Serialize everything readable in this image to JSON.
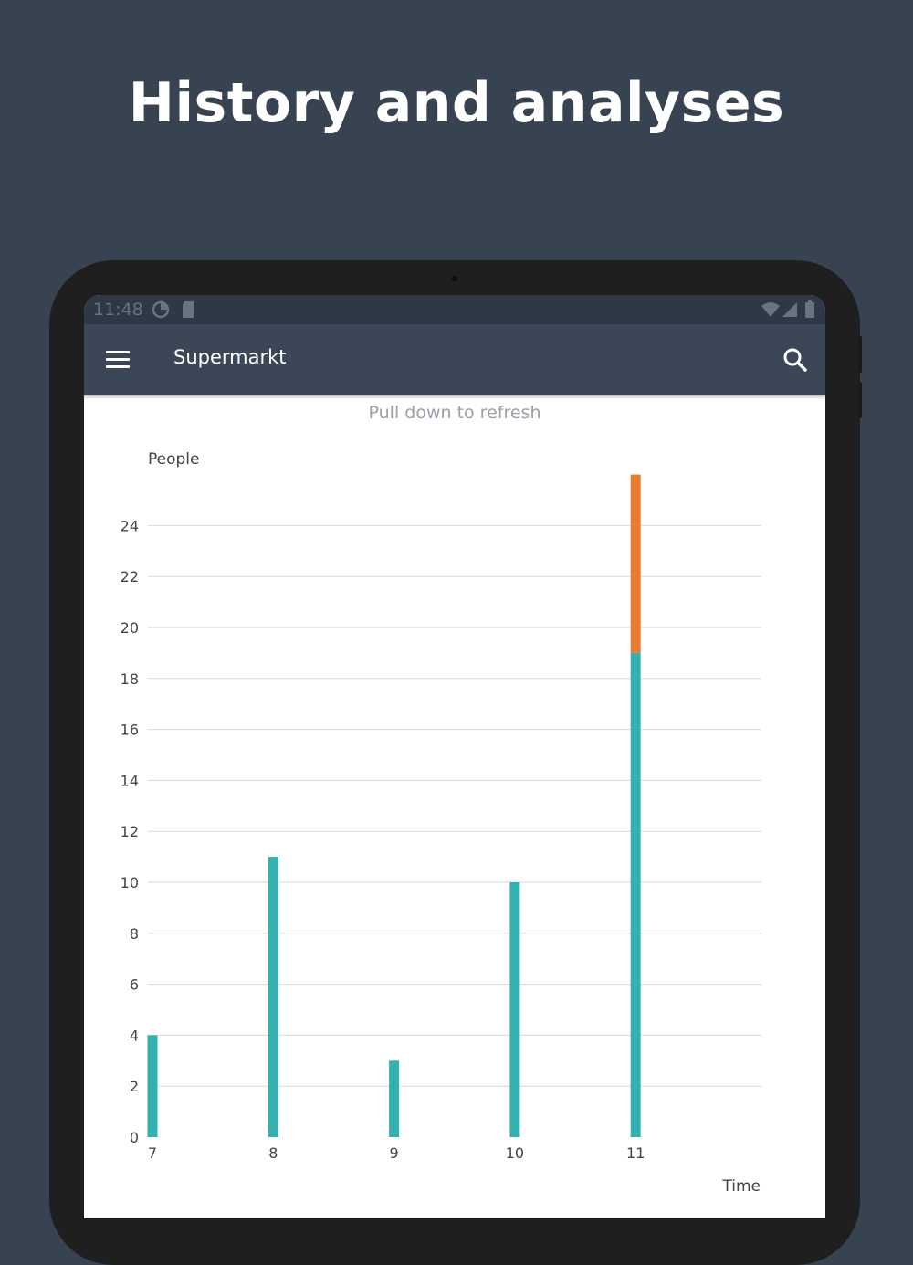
{
  "promo": {
    "headline": "History and analyses"
  },
  "status_bar": {
    "time": "11:48"
  },
  "app_bar": {
    "title": "Supermarkt",
    "menu_icon": "menu-icon",
    "search_icon": "search-icon"
  },
  "refresh_hint": "Pull down to refresh",
  "colors": {
    "background": "#384351",
    "app_bar": "#3b4656",
    "teal": "#33b1b0",
    "orange": "#e87b2f"
  },
  "chart_data": {
    "type": "bar",
    "ylabel": "People",
    "xlabel": "Time",
    "categories": [
      "7",
      "8",
      "9",
      "10",
      "11"
    ],
    "series": [
      {
        "values": [
          4,
          11,
          3,
          10,
          19
        ]
      },
      {
        "values": [
          0,
          0,
          0,
          0,
          7
        ]
      }
    ],
    "ylim": [
      0,
      26
    ],
    "yticks": [
      0,
      2,
      4,
      6,
      8,
      10,
      12,
      14,
      16,
      18,
      20,
      22,
      24
    ],
    "stacked": true,
    "grid": true
  }
}
